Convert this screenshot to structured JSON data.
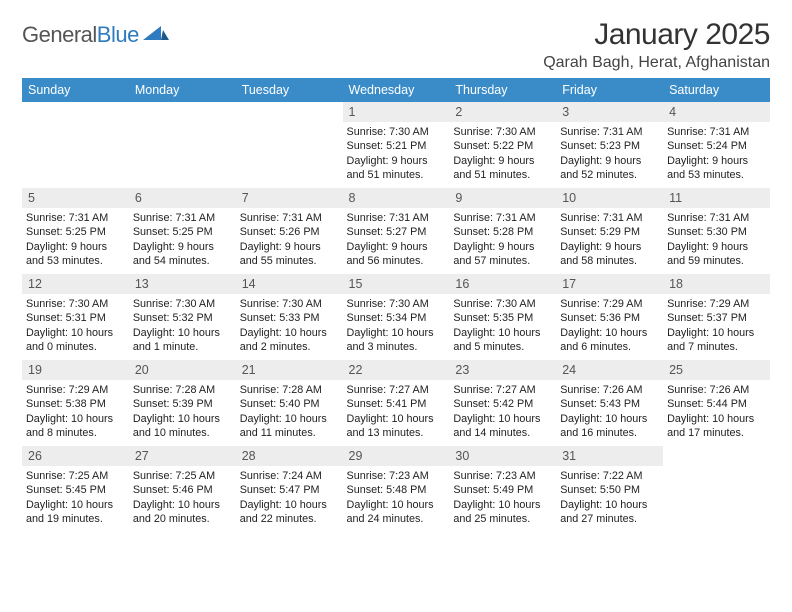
{
  "logo": {
    "word1": "General",
    "word2": "Blue"
  },
  "title": "January 2025",
  "location": "Qarah Bagh, Herat, Afghanistan",
  "header_bg": "#3a8cc9",
  "daynum_bg": "#ededed",
  "days_of_week": [
    "Sunday",
    "Monday",
    "Tuesday",
    "Wednesday",
    "Thursday",
    "Friday",
    "Saturday"
  ],
  "weeks": [
    [
      null,
      null,
      null,
      {
        "n": "1",
        "sunrise": "7:30 AM",
        "sunset": "5:21 PM",
        "daylight": "9 hours and 51 minutes."
      },
      {
        "n": "2",
        "sunrise": "7:30 AM",
        "sunset": "5:22 PM",
        "daylight": "9 hours and 51 minutes."
      },
      {
        "n": "3",
        "sunrise": "7:31 AM",
        "sunset": "5:23 PM",
        "daylight": "9 hours and 52 minutes."
      },
      {
        "n": "4",
        "sunrise": "7:31 AM",
        "sunset": "5:24 PM",
        "daylight": "9 hours and 53 minutes."
      }
    ],
    [
      {
        "n": "5",
        "sunrise": "7:31 AM",
        "sunset": "5:25 PM",
        "daylight": "9 hours and 53 minutes."
      },
      {
        "n": "6",
        "sunrise": "7:31 AM",
        "sunset": "5:25 PM",
        "daylight": "9 hours and 54 minutes."
      },
      {
        "n": "7",
        "sunrise": "7:31 AM",
        "sunset": "5:26 PM",
        "daylight": "9 hours and 55 minutes."
      },
      {
        "n": "8",
        "sunrise": "7:31 AM",
        "sunset": "5:27 PM",
        "daylight": "9 hours and 56 minutes."
      },
      {
        "n": "9",
        "sunrise": "7:31 AM",
        "sunset": "5:28 PM",
        "daylight": "9 hours and 57 minutes."
      },
      {
        "n": "10",
        "sunrise": "7:31 AM",
        "sunset": "5:29 PM",
        "daylight": "9 hours and 58 minutes."
      },
      {
        "n": "11",
        "sunrise": "7:31 AM",
        "sunset": "5:30 PM",
        "daylight": "9 hours and 59 minutes."
      }
    ],
    [
      {
        "n": "12",
        "sunrise": "7:30 AM",
        "sunset": "5:31 PM",
        "daylight": "10 hours and 0 minutes."
      },
      {
        "n": "13",
        "sunrise": "7:30 AM",
        "sunset": "5:32 PM",
        "daylight": "10 hours and 1 minute."
      },
      {
        "n": "14",
        "sunrise": "7:30 AM",
        "sunset": "5:33 PM",
        "daylight": "10 hours and 2 minutes."
      },
      {
        "n": "15",
        "sunrise": "7:30 AM",
        "sunset": "5:34 PM",
        "daylight": "10 hours and 3 minutes."
      },
      {
        "n": "16",
        "sunrise": "7:30 AM",
        "sunset": "5:35 PM",
        "daylight": "10 hours and 5 minutes."
      },
      {
        "n": "17",
        "sunrise": "7:29 AM",
        "sunset": "5:36 PM",
        "daylight": "10 hours and 6 minutes."
      },
      {
        "n": "18",
        "sunrise": "7:29 AM",
        "sunset": "5:37 PM",
        "daylight": "10 hours and 7 minutes."
      }
    ],
    [
      {
        "n": "19",
        "sunrise": "7:29 AM",
        "sunset": "5:38 PM",
        "daylight": "10 hours and 8 minutes."
      },
      {
        "n": "20",
        "sunrise": "7:28 AM",
        "sunset": "5:39 PM",
        "daylight": "10 hours and 10 minutes."
      },
      {
        "n": "21",
        "sunrise": "7:28 AM",
        "sunset": "5:40 PM",
        "daylight": "10 hours and 11 minutes."
      },
      {
        "n": "22",
        "sunrise": "7:27 AM",
        "sunset": "5:41 PM",
        "daylight": "10 hours and 13 minutes."
      },
      {
        "n": "23",
        "sunrise": "7:27 AM",
        "sunset": "5:42 PM",
        "daylight": "10 hours and 14 minutes."
      },
      {
        "n": "24",
        "sunrise": "7:26 AM",
        "sunset": "5:43 PM",
        "daylight": "10 hours and 16 minutes."
      },
      {
        "n": "25",
        "sunrise": "7:26 AM",
        "sunset": "5:44 PM",
        "daylight": "10 hours and 17 minutes."
      }
    ],
    [
      {
        "n": "26",
        "sunrise": "7:25 AM",
        "sunset": "5:45 PM",
        "daylight": "10 hours and 19 minutes."
      },
      {
        "n": "27",
        "sunrise": "7:25 AM",
        "sunset": "5:46 PM",
        "daylight": "10 hours and 20 minutes."
      },
      {
        "n": "28",
        "sunrise": "7:24 AM",
        "sunset": "5:47 PM",
        "daylight": "10 hours and 22 minutes."
      },
      {
        "n": "29",
        "sunrise": "7:23 AM",
        "sunset": "5:48 PM",
        "daylight": "10 hours and 24 minutes."
      },
      {
        "n": "30",
        "sunrise": "7:23 AM",
        "sunset": "5:49 PM",
        "daylight": "10 hours and 25 minutes."
      },
      {
        "n": "31",
        "sunrise": "7:22 AM",
        "sunset": "5:50 PM",
        "daylight": "10 hours and 27 minutes."
      },
      null
    ]
  ],
  "labels": {
    "sunrise": "Sunrise: ",
    "sunset": "Sunset: ",
    "daylight": "Daylight: "
  }
}
